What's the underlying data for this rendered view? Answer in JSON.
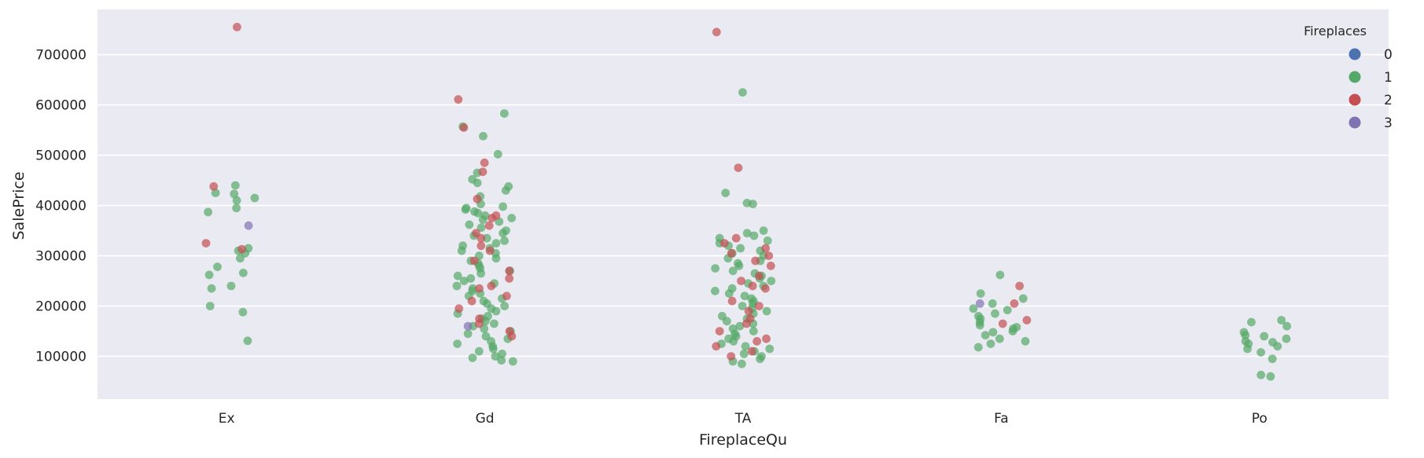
{
  "chart_data": {
    "type": "scatter",
    "subtype": "strip",
    "title": "",
    "xlabel": "FireplaceQu",
    "ylabel": "SalePrice",
    "categories": [
      "Ex",
      "Gd",
      "TA",
      "Fa",
      "Po"
    ],
    "ylim": [
      15000,
      790000
    ],
    "yticks": [
      100000,
      200000,
      300000,
      400000,
      500000,
      600000,
      700000
    ],
    "ytick_labels": [
      "100000",
      "200000",
      "300000",
      "400000",
      "500000",
      "600000",
      "700000"
    ],
    "grid": true,
    "legend": {
      "title": "Fireplaces",
      "placement": "top-right",
      "entries": [
        {
          "label": "0",
          "color": "#4c72b0"
        },
        {
          "label": "1",
          "color": "#55a868"
        },
        {
          "label": "2",
          "color": "#c44e52"
        },
        {
          "label": "3",
          "color": "#8172b2"
        }
      ]
    },
    "series": [
      {
        "name": "1",
        "color": "#55a868",
        "points": [
          [
            "Ex",
            440000
          ],
          [
            "Ex",
            425000
          ],
          [
            "Ex",
            423000
          ],
          [
            "Ex",
            415000
          ],
          [
            "Ex",
            410000
          ],
          [
            "Ex",
            395000
          ],
          [
            "Ex",
            387000
          ],
          [
            "Ex",
            315000
          ],
          [
            "Ex",
            310000
          ],
          [
            "Ex",
            305000
          ],
          [
            "Ex",
            295000
          ],
          [
            "Ex",
            278000
          ],
          [
            "Ex",
            266000
          ],
          [
            "Ex",
            262000
          ],
          [
            "Ex",
            240000
          ],
          [
            "Ex",
            235000
          ],
          [
            "Ex",
            200000
          ],
          [
            "Ex",
            188000
          ],
          [
            "Ex",
            131000
          ],
          [
            "Gd",
            583000
          ],
          [
            "Gd",
            557000
          ],
          [
            "Gd",
            538000
          ],
          [
            "Gd",
            502000
          ],
          [
            "Gd",
            465000
          ],
          [
            "Gd",
            452000
          ],
          [
            "Gd",
            445000
          ],
          [
            "Gd",
            438000
          ],
          [
            "Gd",
            430000
          ],
          [
            "Gd",
            418000
          ],
          [
            "Gd",
            403000
          ],
          [
            "Gd",
            398000
          ],
          [
            "Gd",
            395000
          ],
          [
            "Gd",
            392000
          ],
          [
            "Gd",
            388000
          ],
          [
            "Gd",
            385000
          ],
          [
            "Gd",
            380000
          ],
          [
            "Gd",
            375000
          ],
          [
            "Gd",
            372000
          ],
          [
            "Gd",
            368000
          ],
          [
            "Gd",
            362000
          ],
          [
            "Gd",
            356000
          ],
          [
            "Gd",
            350000
          ],
          [
            "Gd",
            345000
          ],
          [
            "Gd",
            340000
          ],
          [
            "Gd",
            335000
          ],
          [
            "Gd",
            330000
          ],
          [
            "Gd",
            325000
          ],
          [
            "Gd",
            320000
          ],
          [
            "Gd",
            315000
          ],
          [
            "Gd",
            310000
          ],
          [
            "Gd",
            305000
          ],
          [
            "Gd",
            300000
          ],
          [
            "Gd",
            295000
          ],
          [
            "Gd",
            290000
          ],
          [
            "Gd",
            285000
          ],
          [
            "Gd",
            280000
          ],
          [
            "Gd",
            275000
          ],
          [
            "Gd",
            270000
          ],
          [
            "Gd",
            265000
          ],
          [
            "Gd",
            260000
          ],
          [
            "Gd",
            255000
          ],
          [
            "Gd",
            250000
          ],
          [
            "Gd",
            245000
          ],
          [
            "Gd",
            240000
          ],
          [
            "Gd",
            235000
          ],
          [
            "Gd",
            230000
          ],
          [
            "Gd",
            225000
          ],
          [
            "Gd",
            220000
          ],
          [
            "Gd",
            215000
          ],
          [
            "Gd",
            210000
          ],
          [
            "Gd",
            205000
          ],
          [
            "Gd",
            200000
          ],
          [
            "Gd",
            195000
          ],
          [
            "Gd",
            190000
          ],
          [
            "Gd",
            185000
          ],
          [
            "Gd",
            180000
          ],
          [
            "Gd",
            175000
          ],
          [
            "Gd",
            170000
          ],
          [
            "Gd",
            165000
          ],
          [
            "Gd",
            160000
          ],
          [
            "Gd",
            155000
          ],
          [
            "Gd",
            150000
          ],
          [
            "Gd",
            145000
          ],
          [
            "Gd",
            140000
          ],
          [
            "Gd",
            135000
          ],
          [
            "Gd",
            130000
          ],
          [
            "Gd",
            125000
          ],
          [
            "Gd",
            120000
          ],
          [
            "Gd",
            115000
          ],
          [
            "Gd",
            110000
          ],
          [
            "Gd",
            105000
          ],
          [
            "Gd",
            100000
          ],
          [
            "Gd",
            97000
          ],
          [
            "Gd",
            92000
          ],
          [
            "Gd",
            90000
          ],
          [
            "TA",
            625000
          ],
          [
            "TA",
            425000
          ],
          [
            "TA",
            405000
          ],
          [
            "TA",
            403000
          ],
          [
            "TA",
            350000
          ],
          [
            "TA",
            345000
          ],
          [
            "TA",
            340000
          ],
          [
            "TA",
            335000
          ],
          [
            "TA",
            330000
          ],
          [
            "TA",
            325000
          ],
          [
            "TA",
            320000
          ],
          [
            "TA",
            315000
          ],
          [
            "TA",
            310000
          ],
          [
            "TA",
            305000
          ],
          [
            "TA",
            300000
          ],
          [
            "TA",
            295000
          ],
          [
            "TA",
            290000
          ],
          [
            "TA",
            285000
          ],
          [
            "TA",
            280000
          ],
          [
            "TA",
            275000
          ],
          [
            "TA",
            270000
          ],
          [
            "TA",
            265000
          ],
          [
            "TA",
            260000
          ],
          [
            "TA",
            255000
          ],
          [
            "TA",
            250000
          ],
          [
            "TA",
            245000
          ],
          [
            "TA",
            240000
          ],
          [
            "TA",
            235000
          ],
          [
            "TA",
            230000
          ],
          [
            "TA",
            225000
          ],
          [
            "TA",
            220000
          ],
          [
            "TA",
            215000
          ],
          [
            "TA",
            210000
          ],
          [
            "TA",
            205000
          ],
          [
            "TA",
            200000
          ],
          [
            "TA",
            195000
          ],
          [
            "TA",
            190000
          ],
          [
            "TA",
            185000
          ],
          [
            "TA",
            180000
          ],
          [
            "TA",
            175000
          ],
          [
            "TA",
            170000
          ],
          [
            "TA",
            165000
          ],
          [
            "TA",
            160000
          ],
          [
            "TA",
            155000
          ],
          [
            "TA",
            150000
          ],
          [
            "TA",
            145000
          ],
          [
            "TA",
            140000
          ],
          [
            "TA",
            135000
          ],
          [
            "TA",
            130000
          ],
          [
            "TA",
            125000
          ],
          [
            "TA",
            120000
          ],
          [
            "TA",
            115000
          ],
          [
            "TA",
            110000
          ],
          [
            "TA",
            105000
          ],
          [
            "TA",
            100000
          ],
          [
            "TA",
            95000
          ],
          [
            "TA",
            90000
          ],
          [
            "TA",
            85000
          ],
          [
            "Fa",
            262000
          ],
          [
            "Fa",
            225000
          ],
          [
            "Fa",
            215000
          ],
          [
            "Fa",
            205000
          ],
          [
            "Fa",
            195000
          ],
          [
            "Fa",
            192000
          ],
          [
            "Fa",
            185000
          ],
          [
            "Fa",
            180000
          ],
          [
            "Fa",
            175000
          ],
          [
            "Fa",
            168000
          ],
          [
            "Fa",
            162000
          ],
          [
            "Fa",
            158000
          ],
          [
            "Fa",
            155000
          ],
          [
            "Fa",
            150000
          ],
          [
            "Fa",
            148000
          ],
          [
            "Fa",
            142000
          ],
          [
            "Fa",
            135000
          ],
          [
            "Fa",
            130000
          ],
          [
            "Fa",
            125000
          ],
          [
            "Fa",
            118000
          ],
          [
            "Po",
            172000
          ],
          [
            "Po",
            168000
          ],
          [
            "Po",
            160000
          ],
          [
            "Po",
            148000
          ],
          [
            "Po",
            142000
          ],
          [
            "Po",
            140000
          ],
          [
            "Po",
            135000
          ],
          [
            "Po",
            130000
          ],
          [
            "Po",
            128000
          ],
          [
            "Po",
            125000
          ],
          [
            "Po",
            120000
          ],
          [
            "Po",
            115000
          ],
          [
            "Po",
            108000
          ],
          [
            "Po",
            95000
          ],
          [
            "Po",
            63000
          ],
          [
            "Po",
            60000
          ]
        ]
      },
      {
        "name": "2",
        "color": "#c44e52",
        "points": [
          [
            "Ex",
            755000
          ],
          [
            "Ex",
            438000
          ],
          [
            "Ex",
            325000
          ],
          [
            "Ex",
            313000
          ],
          [
            "Gd",
            611000
          ],
          [
            "Gd",
            555000
          ],
          [
            "Gd",
            485000
          ],
          [
            "Gd",
            467000
          ],
          [
            "Gd",
            413000
          ],
          [
            "Gd",
            380000
          ],
          [
            "Gd",
            375000
          ],
          [
            "Gd",
            360000
          ],
          [
            "Gd",
            345000
          ],
          [
            "Gd",
            335000
          ],
          [
            "Gd",
            320000
          ],
          [
            "Gd",
            310000
          ],
          [
            "Gd",
            290000
          ],
          [
            "Gd",
            270000
          ],
          [
            "Gd",
            255000
          ],
          [
            "Gd",
            240000
          ],
          [
            "Gd",
            235000
          ],
          [
            "Gd",
            220000
          ],
          [
            "Gd",
            210000
          ],
          [
            "Gd",
            195000
          ],
          [
            "Gd",
            175000
          ],
          [
            "Gd",
            165000
          ],
          [
            "Gd",
            150000
          ],
          [
            "Gd",
            140000
          ],
          [
            "TA",
            745000
          ],
          [
            "TA",
            475000
          ],
          [
            "TA",
            335000
          ],
          [
            "TA",
            325000
          ],
          [
            "TA",
            315000
          ],
          [
            "TA",
            305000
          ],
          [
            "TA",
            300000
          ],
          [
            "TA",
            290000
          ],
          [
            "TA",
            280000
          ],
          [
            "TA",
            260000
          ],
          [
            "TA",
            250000
          ],
          [
            "TA",
            240000
          ],
          [
            "TA",
            235000
          ],
          [
            "TA",
            210000
          ],
          [
            "TA",
            200000
          ],
          [
            "TA",
            190000
          ],
          [
            "TA",
            175000
          ],
          [
            "TA",
            165000
          ],
          [
            "TA",
            150000
          ],
          [
            "TA",
            135000
          ],
          [
            "TA",
            130000
          ],
          [
            "TA",
            120000
          ],
          [
            "TA",
            110000
          ],
          [
            "TA",
            100000
          ],
          [
            "Fa",
            240000
          ],
          [
            "Fa",
            205000
          ],
          [
            "Fa",
            172000
          ],
          [
            "Fa",
            165000
          ]
        ]
      },
      {
        "name": "3",
        "color": "#8172b2",
        "points": [
          [
            "Ex",
            360000
          ],
          [
            "Gd",
            160000
          ],
          [
            "Fa",
            205000
          ]
        ]
      }
    ]
  }
}
